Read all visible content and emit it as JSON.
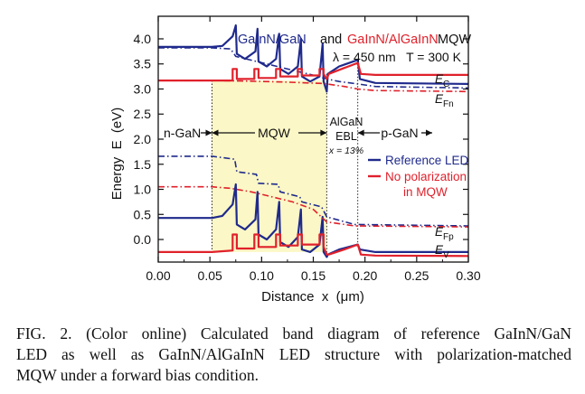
{
  "chart_data": {
    "type": "line",
    "title_parts": {
      "ref": "GaInN/GaN",
      "and": "and",
      "pm": "GaInN/AlGaInN",
      "mqw": "MQW"
    },
    "conditions": "λ = 450 nm   T = 300 K",
    "xlabel": "Distance  x  (μm)",
    "ylabel": "Energy  E  (eV)",
    "xlim": [
      0.0,
      0.3
    ],
    "ylim": [
      -0.45,
      4.45
    ],
    "x_ticks": [
      "0.00",
      "0.05",
      "0.10",
      "0.15",
      "0.20",
      "0.25",
      "0.30"
    ],
    "x_tick_values": [
      0.0,
      0.05,
      0.1,
      0.15,
      0.2,
      0.25,
      0.3
    ],
    "y_ticks": [
      "0.0",
      "0.5",
      "1.0",
      "1.5",
      "2.0",
      "2.5",
      "3.0",
      "3.5",
      "4.0"
    ],
    "y_tick_values": [
      0.0,
      0.5,
      1.0,
      1.5,
      2.0,
      2.5,
      3.0,
      3.5,
      4.0
    ],
    "colors": {
      "ref": "#1f2a8c",
      "pm": "#e0212b",
      "shade": "#fbf7c6"
    },
    "regions": {
      "ngan": "n-GaN",
      "mqw": "MQW",
      "ebl_1": "AlGaN",
      "ebl_2": "EBL",
      "ebl_3": "x = 13%",
      "pgan": "p-GaN"
    },
    "region_bounds": {
      "mqw": [
        0.052,
        0.163
      ],
      "ebl": [
        0.163,
        0.193
      ]
    },
    "band_labels": {
      "ec": "E_C",
      "efn": "E_Fn",
      "efp": "E_Fp",
      "ev": "E_V"
    },
    "legend": {
      "ref": "Reference LED",
      "pm_1": "No polarization",
      "pm_2": "in MQW"
    },
    "series": [
      {
        "name": "Reference LED",
        "band": "EC",
        "color": "#1f2a8c",
        "dash": "solid",
        "points": [
          [
            0,
            3.84
          ],
          [
            0.052,
            3.84
          ],
          [
            0.062,
            3.86
          ],
          [
            0.072,
            4.05
          ],
          [
            0.075,
            4.27
          ],
          [
            0.076,
            3.7
          ],
          [
            0.084,
            3.6
          ],
          [
            0.094,
            3.75
          ],
          [
            0.096,
            4.2
          ],
          [
            0.097,
            3.55
          ],
          [
            0.105,
            3.45
          ],
          [
            0.114,
            3.6
          ],
          [
            0.117,
            4.1
          ],
          [
            0.118,
            3.4
          ],
          [
            0.126,
            3.3
          ],
          [
            0.135,
            3.45
          ],
          [
            0.138,
            4.0
          ],
          [
            0.139,
            3.25
          ],
          [
            0.147,
            3.15
          ],
          [
            0.156,
            3.25
          ],
          [
            0.159,
            3.9
          ],
          [
            0.16,
            3.15
          ],
          [
            0.163,
            2.95
          ],
          [
            0.164,
            3.3
          ],
          [
            0.175,
            3.45
          ],
          [
            0.193,
            3.58
          ],
          [
            0.195,
            3.2
          ],
          [
            0.21,
            3.12
          ],
          [
            0.3,
            3.1
          ]
        ]
      },
      {
        "name": "Reference LED",
        "band": "EFn",
        "color": "#1f2a8c",
        "dash": "dashdot",
        "points": [
          [
            0,
            3.82
          ],
          [
            0.052,
            3.82
          ],
          [
            0.07,
            3.8
          ],
          [
            0.075,
            3.65
          ],
          [
            0.095,
            3.55
          ],
          [
            0.115,
            3.45
          ],
          [
            0.135,
            3.35
          ],
          [
            0.155,
            3.25
          ],
          [
            0.163,
            3.2
          ],
          [
            0.175,
            3.15
          ],
          [
            0.193,
            3.1
          ],
          [
            0.21,
            3.05
          ],
          [
            0.3,
            3.02
          ]
        ]
      },
      {
        "name": "Reference LED",
        "band": "EFp",
        "color": "#1f2a8c",
        "dash": "dashdot",
        "points": [
          [
            0,
            1.66
          ],
          [
            0.052,
            1.66
          ],
          [
            0.074,
            1.6
          ],
          [
            0.076,
            1.35
          ],
          [
            0.095,
            1.3
          ],
          [
            0.097,
            1.12
          ],
          [
            0.116,
            1.1
          ],
          [
            0.118,
            0.95
          ],
          [
            0.137,
            0.85
          ],
          [
            0.139,
            0.75
          ],
          [
            0.158,
            0.65
          ],
          [
            0.163,
            0.45
          ],
          [
            0.19,
            0.3
          ],
          [
            0.3,
            0.27
          ]
        ]
      },
      {
        "name": "Reference LED",
        "band": "EV",
        "color": "#1f2a8c",
        "dash": "solid",
        "points": [
          [
            0,
            0.43
          ],
          [
            0.052,
            0.43
          ],
          [
            0.062,
            0.47
          ],
          [
            0.072,
            0.7
          ],
          [
            0.075,
            1.1
          ],
          [
            0.076,
            0.3
          ],
          [
            0.084,
            0.2
          ],
          [
            0.094,
            0.4
          ],
          [
            0.096,
            0.95
          ],
          [
            0.097,
            0.1
          ],
          [
            0.105,
            0.0
          ],
          [
            0.114,
            0.2
          ],
          [
            0.117,
            0.75
          ],
          [
            0.118,
            -0.05
          ],
          [
            0.126,
            -0.15
          ],
          [
            0.135,
            0.05
          ],
          [
            0.138,
            0.6
          ],
          [
            0.139,
            -0.2
          ],
          [
            0.147,
            -0.25
          ],
          [
            0.156,
            -0.1
          ],
          [
            0.159,
            0.45
          ],
          [
            0.16,
            -0.25
          ],
          [
            0.163,
            -0.35
          ],
          [
            0.164,
            -0.3
          ],
          [
            0.175,
            -0.2
          ],
          [
            0.193,
            -0.1
          ],
          [
            0.195,
            -0.2
          ],
          [
            0.21,
            -0.25
          ],
          [
            0.3,
            -0.25
          ]
        ]
      },
      {
        "name": "No polarization in MQW",
        "band": "EC",
        "color": "#e0212b",
        "dash": "solid",
        "points": [
          [
            0,
            3.17
          ],
          [
            0.052,
            3.17
          ],
          [
            0.072,
            3.17
          ],
          [
            0.072,
            3.4
          ],
          [
            0.076,
            3.4
          ],
          [
            0.076,
            3.2
          ],
          [
            0.093,
            3.2
          ],
          [
            0.093,
            3.4
          ],
          [
            0.097,
            3.4
          ],
          [
            0.097,
            3.22
          ],
          [
            0.114,
            3.22
          ],
          [
            0.114,
            3.4
          ],
          [
            0.118,
            3.4
          ],
          [
            0.118,
            3.25
          ],
          [
            0.135,
            3.25
          ],
          [
            0.135,
            3.4
          ],
          [
            0.139,
            3.4
          ],
          [
            0.139,
            3.27
          ],
          [
            0.156,
            3.27
          ],
          [
            0.156,
            3.4
          ],
          [
            0.16,
            3.4
          ],
          [
            0.16,
            3.3
          ],
          [
            0.163,
            3.2
          ],
          [
            0.165,
            3.3
          ],
          [
            0.18,
            3.42
          ],
          [
            0.193,
            3.52
          ],
          [
            0.196,
            3.3
          ],
          [
            0.21,
            3.28
          ],
          [
            0.3,
            3.28
          ]
        ]
      },
      {
        "name": "No polarization in MQW",
        "band": "EFn",
        "color": "#e0212b",
        "dash": "dashdot",
        "points": [
          [
            0,
            3.17
          ],
          [
            0.052,
            3.17
          ],
          [
            0.08,
            3.16
          ],
          [
            0.12,
            3.14
          ],
          [
            0.16,
            3.11
          ],
          [
            0.18,
            3.05
          ],
          [
            0.193,
            3.0
          ],
          [
            0.21,
            2.97
          ],
          [
            0.3,
            2.95
          ]
        ]
      },
      {
        "name": "No polarization in MQW",
        "band": "EFp",
        "color": "#e0212b",
        "dash": "dashdot",
        "points": [
          [
            0,
            1.05
          ],
          [
            0.052,
            1.05
          ],
          [
            0.07,
            1.02
          ],
          [
            0.09,
            0.95
          ],
          [
            0.11,
            0.85
          ],
          [
            0.13,
            0.75
          ],
          [
            0.15,
            0.6
          ],
          [
            0.163,
            0.35
          ],
          [
            0.19,
            0.27
          ],
          [
            0.3,
            0.25
          ]
        ]
      },
      {
        "name": "No polarization in MQW",
        "band": "EV",
        "color": "#e0212b",
        "dash": "solid",
        "points": [
          [
            0,
            -0.25
          ],
          [
            0.052,
            -0.25
          ],
          [
            0.072,
            -0.22
          ],
          [
            0.072,
            0.1
          ],
          [
            0.076,
            0.1
          ],
          [
            0.076,
            -0.18
          ],
          [
            0.093,
            -0.18
          ],
          [
            0.093,
            0.1
          ],
          [
            0.097,
            0.1
          ],
          [
            0.097,
            -0.15
          ],
          [
            0.114,
            -0.15
          ],
          [
            0.114,
            0.1
          ],
          [
            0.118,
            0.1
          ],
          [
            0.118,
            -0.12
          ],
          [
            0.135,
            -0.12
          ],
          [
            0.135,
            0.1
          ],
          [
            0.139,
            0.1
          ],
          [
            0.139,
            -0.1
          ],
          [
            0.156,
            -0.1
          ],
          [
            0.156,
            0.1
          ],
          [
            0.16,
            0.1
          ],
          [
            0.16,
            -0.15
          ],
          [
            0.163,
            -0.3
          ],
          [
            0.165,
            -0.3
          ],
          [
            0.18,
            -0.2
          ],
          [
            0.193,
            -0.1
          ],
          [
            0.196,
            -0.3
          ],
          [
            0.21,
            -0.32
          ],
          [
            0.3,
            -0.33
          ]
        ]
      }
    ]
  },
  "caption": {
    "line1": "FIG. 2. (Color online) Calculated band diagram of reference GaInN/GaN",
    "line2": "LED as well as GaInN/AlGaInN LED structure with polarization-matched",
    "line3": "MQW under a forward bias condition."
  }
}
